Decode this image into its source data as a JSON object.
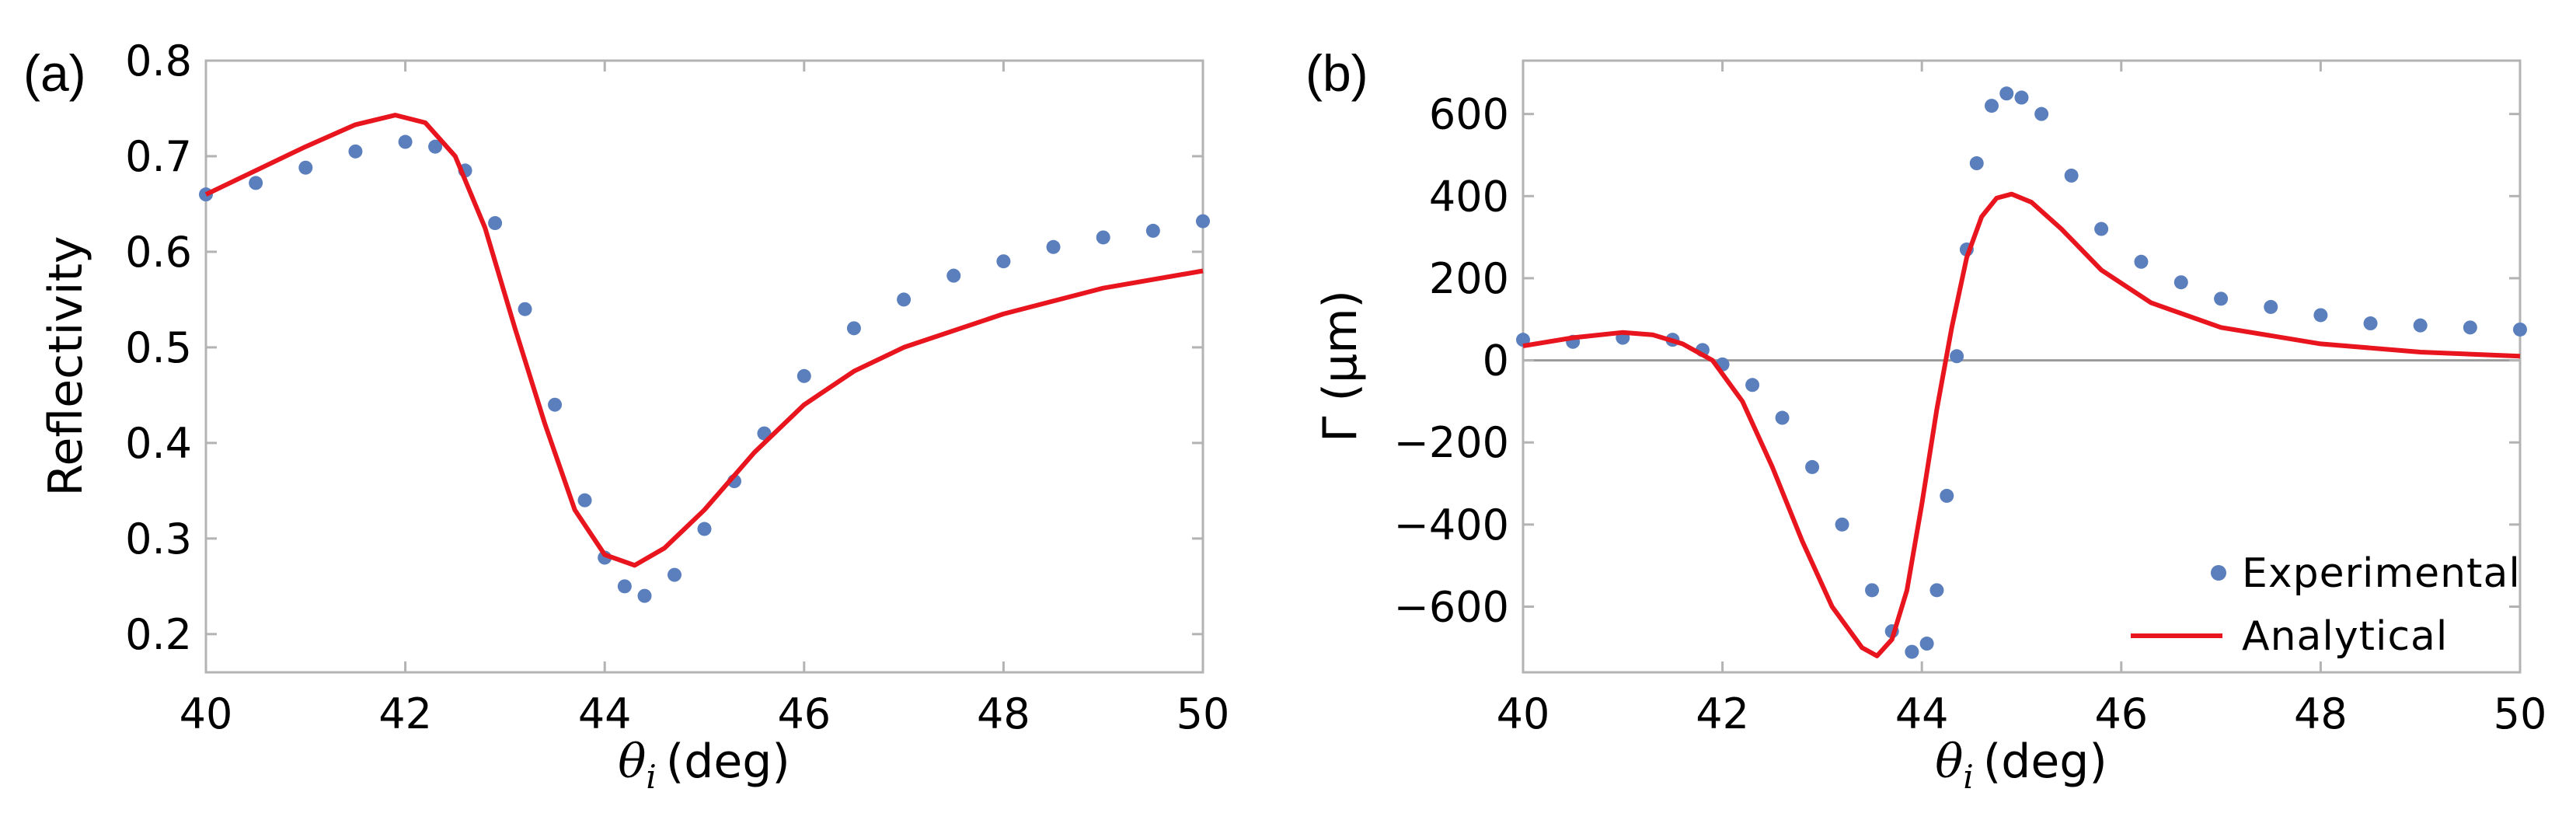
{
  "colors": {
    "experimental": "#5b7fbd",
    "analytical": "#e8141e",
    "frame": "#b3b3b3",
    "zero_line": "#9a9a9a"
  },
  "chart_data": [
    {
      "panel_label": "(a)",
      "type": "scatter",
      "xlabel_symbol": "θ",
      "xlabel_sub": "i",
      "xlabel_unit": "(deg)",
      "ylabel": "Reflectivity",
      "xlim": [
        40,
        50
      ],
      "ylim": [
        0.16,
        0.8
      ],
      "xticks": [
        40,
        42,
        44,
        46,
        48,
        50
      ],
      "xtick_labels": [
        "40",
        "42",
        "44",
        "46",
        "48",
        "50"
      ],
      "yticks": [
        0.2,
        0.3,
        0.4,
        0.5,
        0.6,
        0.7,
        0.8
      ],
      "ytick_labels": [
        "0.2",
        "0.3",
        "0.4",
        "0.5",
        "0.6",
        "0.7",
        "0.8"
      ],
      "series": [
        {
          "name": "Experimental",
          "style": "markers",
          "x": [
            40.0,
            40.5,
            41.0,
            41.5,
            42.0,
            42.3,
            42.6,
            42.9,
            43.2,
            43.5,
            43.8,
            44.0,
            44.2,
            44.4,
            44.7,
            45.0,
            45.3,
            45.6,
            46.0,
            46.5,
            47.0,
            47.5,
            48.0,
            48.5,
            49.0,
            49.5,
            50.0
          ],
          "y": [
            0.66,
            0.672,
            0.688,
            0.705,
            0.715,
            0.71,
            0.685,
            0.63,
            0.54,
            0.44,
            0.34,
            0.28,
            0.25,
            0.24,
            0.262,
            0.31,
            0.36,
            0.41,
            0.47,
            0.52,
            0.55,
            0.575,
            0.59,
            0.605,
            0.615,
            0.622,
            0.632
          ]
        },
        {
          "name": "Analytical",
          "style": "line",
          "x": [
            40.0,
            40.5,
            41.0,
            41.5,
            41.9,
            42.2,
            42.5,
            42.8,
            43.1,
            43.4,
            43.7,
            44.0,
            44.3,
            44.6,
            45.0,
            45.5,
            46.0,
            46.5,
            47.0,
            48.0,
            49.0,
            50.0
          ],
          "y": [
            0.66,
            0.685,
            0.71,
            0.733,
            0.743,
            0.735,
            0.7,
            0.625,
            0.52,
            0.42,
            0.33,
            0.283,
            0.272,
            0.29,
            0.33,
            0.39,
            0.44,
            0.475,
            0.5,
            0.535,
            0.562,
            0.58
          ]
        }
      ]
    },
    {
      "panel_label": "(b)",
      "type": "scatter",
      "xlabel_symbol": "θ",
      "xlabel_sub": "i",
      "xlabel_unit": "(deg)",
      "ylabel": "Γ (μm)",
      "xlim": [
        40,
        50
      ],
      "ylim": [
        -760,
        730
      ],
      "xticks": [
        40,
        42,
        44,
        46,
        48,
        50
      ],
      "xtick_labels": [
        "40",
        "42",
        "44",
        "46",
        "48",
        "50"
      ],
      "yticks": [
        -600,
        -400,
        -200,
        0,
        200,
        400,
        600
      ],
      "ytick_labels": [
        "−600",
        "−400",
        "−200",
        "0",
        "200",
        "400",
        "600"
      ],
      "zero_line": true,
      "legend": {
        "position": "bottom-right",
        "entries": [
          "Experimental",
          "Analytical"
        ]
      },
      "series": [
        {
          "name": "Experimental",
          "style": "markers",
          "x": [
            40.0,
            40.5,
            41.0,
            41.5,
            41.8,
            42.0,
            42.3,
            42.6,
            42.9,
            43.2,
            43.5,
            43.7,
            43.9,
            44.05,
            44.15,
            44.25,
            44.35,
            44.45,
            44.55,
            44.7,
            44.85,
            45.0,
            45.2,
            45.5,
            45.8,
            46.2,
            46.6,
            47.0,
            47.5,
            48.0,
            48.5,
            49.0,
            49.5,
            50.0
          ],
          "y": [
            50,
            45,
            55,
            50,
            25,
            -10,
            -60,
            -140,
            -260,
            -400,
            -560,
            -660,
            -710,
            -690,
            -560,
            -330,
            10,
            270,
            480,
            620,
            650,
            640,
            600,
            450,
            320,
            240,
            190,
            150,
            130,
            110,
            90,
            85,
            80,
            75
          ]
        },
        {
          "name": "Analytical",
          "style": "line",
          "x": [
            40.0,
            40.5,
            41.0,
            41.3,
            41.6,
            41.9,
            42.2,
            42.5,
            42.8,
            43.1,
            43.4,
            43.55,
            43.7,
            43.85,
            44.0,
            44.15,
            44.3,
            44.45,
            44.6,
            44.75,
            44.9,
            45.1,
            45.4,
            45.8,
            46.3,
            47.0,
            48.0,
            49.0,
            50.0
          ],
          "y": [
            35,
            55,
            68,
            62,
            40,
            0,
            -100,
            -260,
            -440,
            -600,
            -700,
            -720,
            -680,
            -560,
            -350,
            -120,
            80,
            250,
            350,
            395,
            405,
            385,
            320,
            220,
            140,
            80,
            40,
            20,
            10
          ]
        }
      ]
    }
  ]
}
